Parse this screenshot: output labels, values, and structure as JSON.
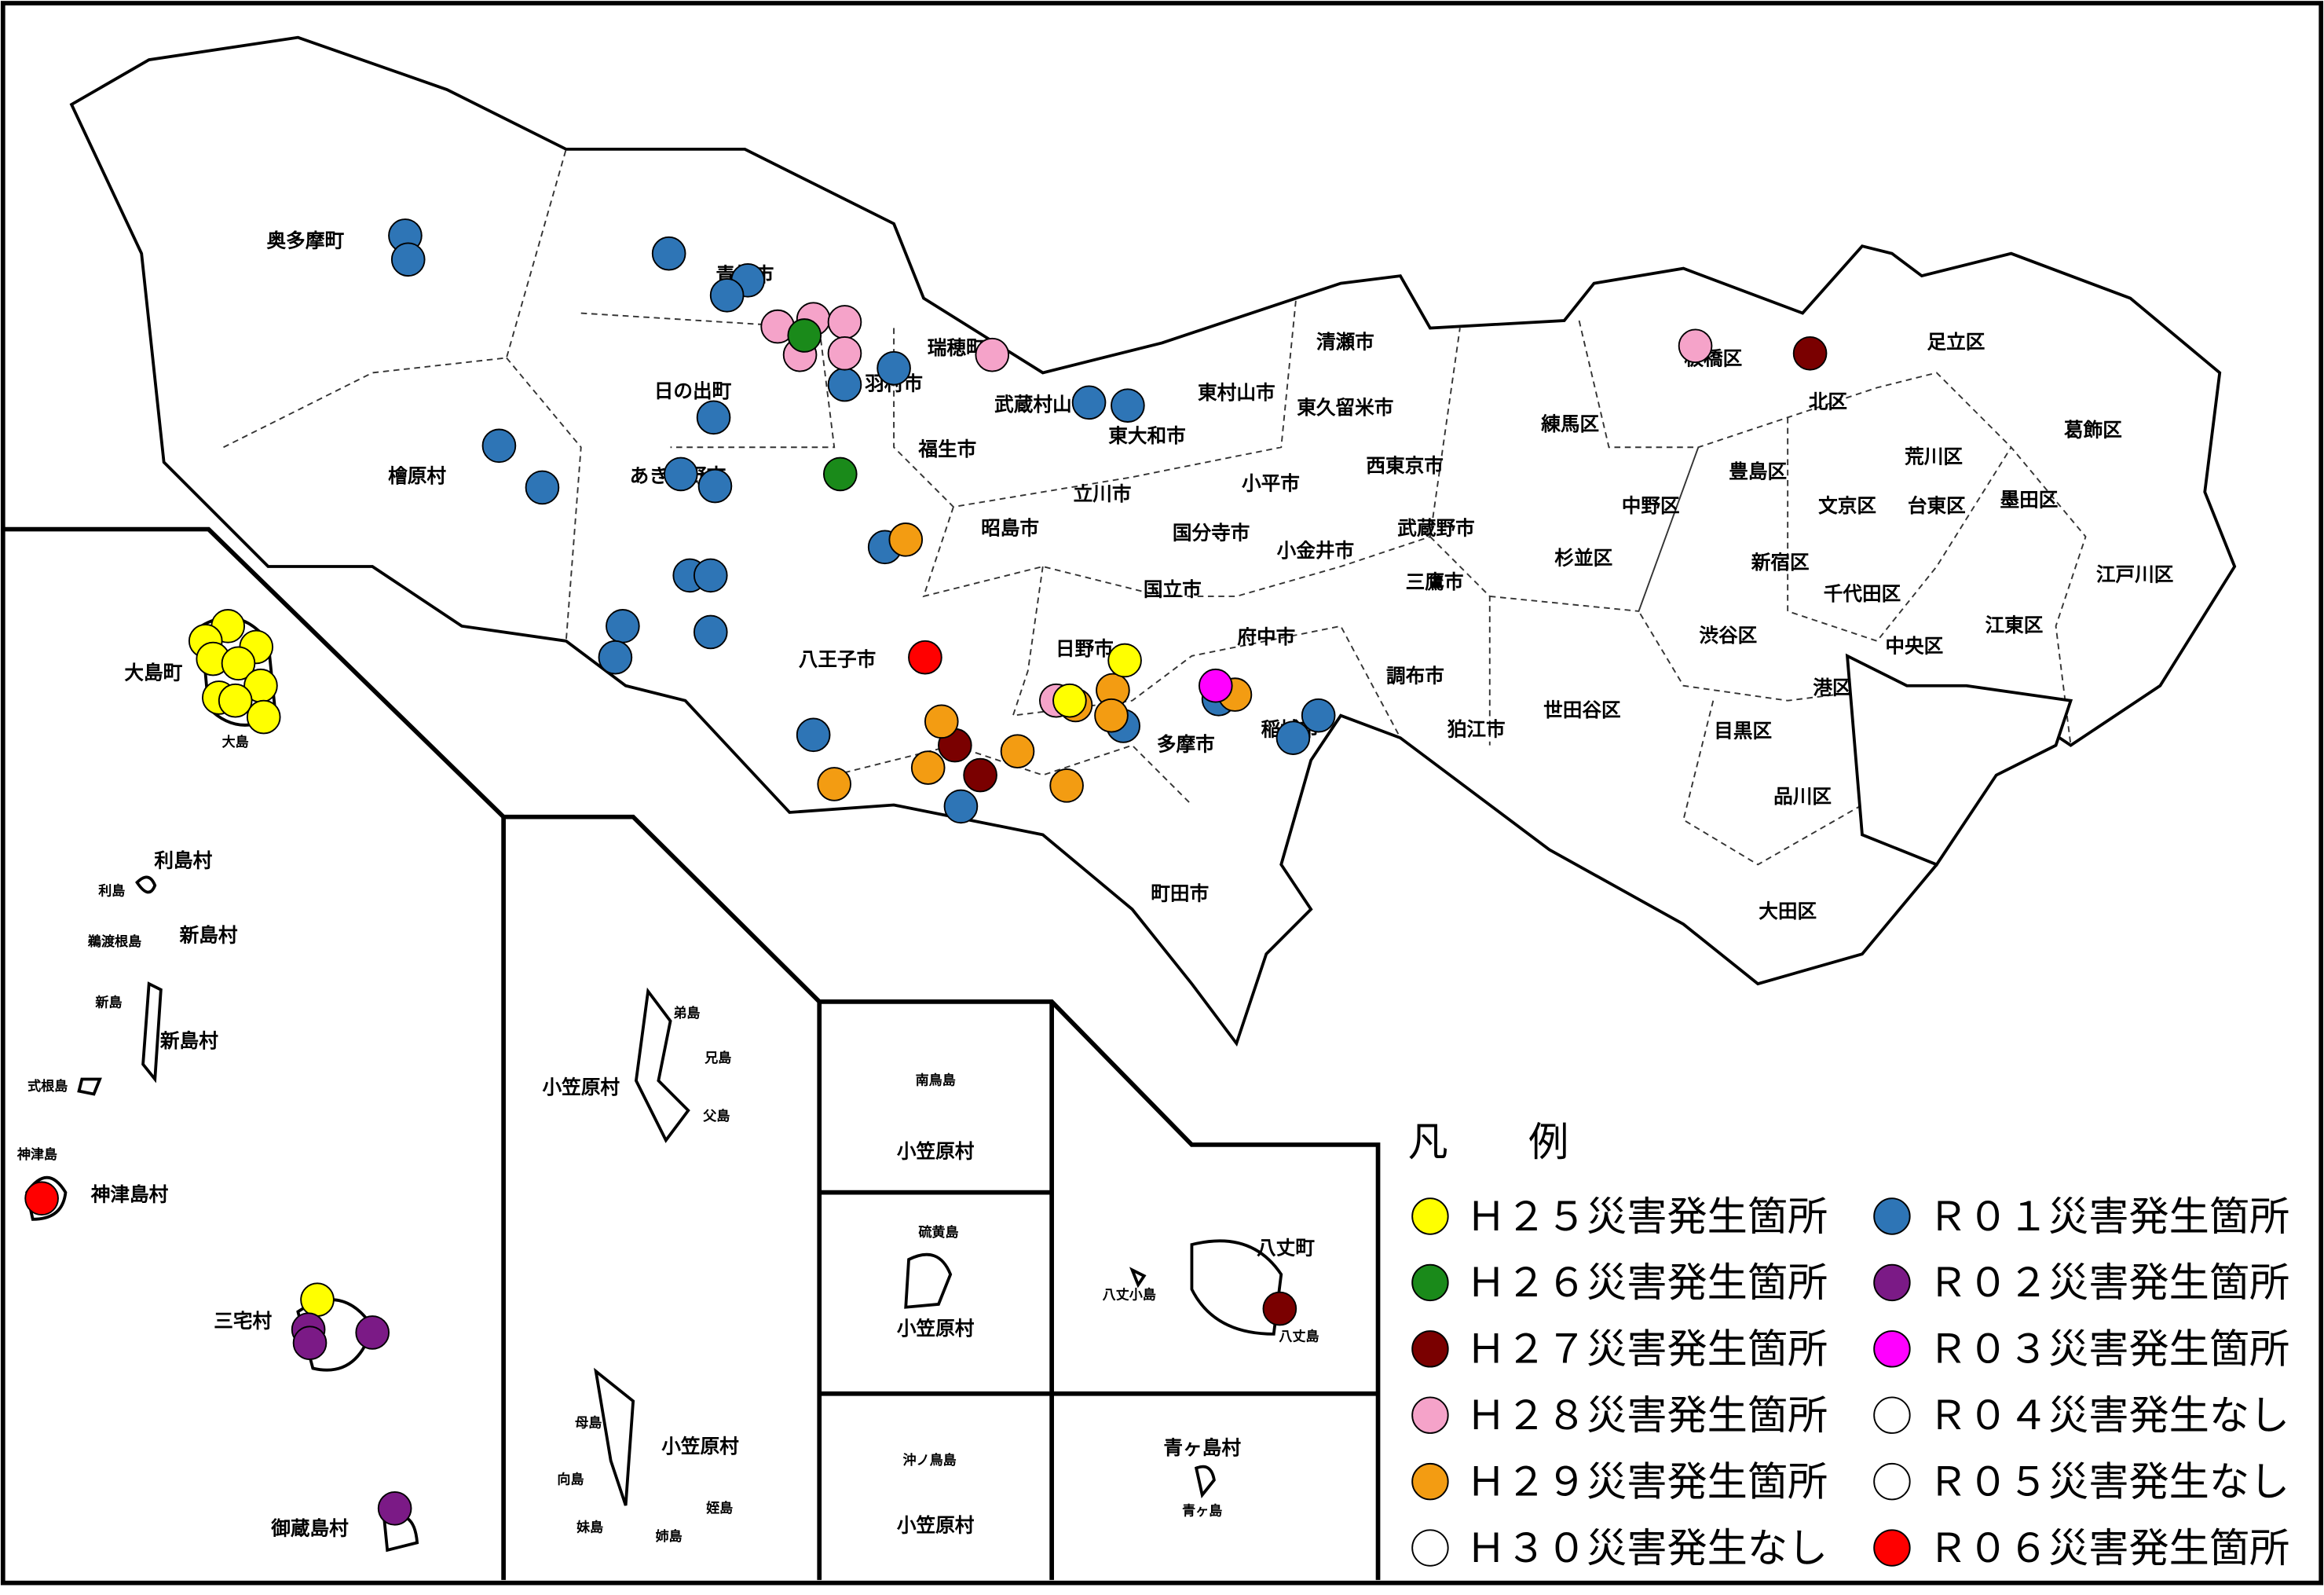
{
  "map": {
    "labels": [
      "奥多摩町",
      "青梅市",
      "瑞穂町",
      "日の出町",
      "羽村市",
      "武蔵村山市",
      "東村山市",
      "清瀬市",
      "東久留米市",
      "東大和市",
      "福生市",
      "檜原村",
      "あきる野市",
      "西東京市",
      "練馬区",
      "板橋区",
      "北区",
      "足立区",
      "葛飾区",
      "荒川区",
      "豊島区",
      "中野区",
      "文京区",
      "台東区",
      "墨田区",
      "立川市",
      "小平市",
      "昭島市",
      "国分寺市",
      "小金井市",
      "武蔵野市",
      "杉並区",
      "新宿区",
      "江戸川区",
      "千代田区",
      "国立市",
      "三鷹市",
      "渋谷区",
      "中央区",
      "江東区",
      "八王子市",
      "日野市",
      "府中市",
      "調布市",
      "港区",
      "狛江市",
      "世田谷区",
      "目黒区",
      "稲城市",
      "多摩市",
      "品川区",
      "町田市",
      "大田区",
      "大島町",
      "利島村",
      "新島村",
      "新島村",
      "神津島村",
      "三宅村",
      "御蔵島村",
      "小笠原村",
      "小笠原村",
      "小笠原村",
      "小笠原村",
      "小笠原村",
      "八丈町",
      "青ヶ島村"
    ],
    "small_labels": [
      "大島",
      "利島",
      "鵜渡根島",
      "新島",
      "式根島",
      "神津島",
      "弟島",
      "兄島",
      "父島",
      "母島",
      "向島",
      "姪島",
      "妹島",
      "姉島",
      "南鳥島",
      "硫黄島",
      "沖ノ鳥島",
      "八丈小島",
      "八丈島",
      "青ヶ島"
    ]
  },
  "legend": {
    "title": "凡　　例",
    "items": [
      {
        "label": "Ｈ２５災害発生箇所",
        "color": "#ffff00"
      },
      {
        "label": "Ｈ２６災害発生箇所",
        "color": "#1a8a1a"
      },
      {
        "label": "Ｈ２７災害発生箇所",
        "color": "#7a0000"
      },
      {
        "label": "Ｈ２８災害発生箇所",
        "color": "#f5a3c9"
      },
      {
        "label": "Ｈ２９災害発生箇所",
        "color": "#f39c12"
      },
      {
        "label": "Ｈ３０災害発生なし",
        "color": "#ffffff"
      },
      {
        "label": "Ｒ０１災害発生箇所",
        "color": "#2e75b6"
      },
      {
        "label": "Ｒ０２災害発生箇所",
        "color": "#7b1a86"
      },
      {
        "label": "Ｒ０３災害発生箇所",
        "color": "#ff00ff"
      },
      {
        "label": "Ｒ０４災害発生なし",
        "color": "#ffffff"
      },
      {
        "label": "Ｒ０５災害発生なし",
        "color": "#ffffff"
      },
      {
        "label": "Ｒ０６災害発生箇所",
        "color": "#ff0000"
      }
    ]
  }
}
